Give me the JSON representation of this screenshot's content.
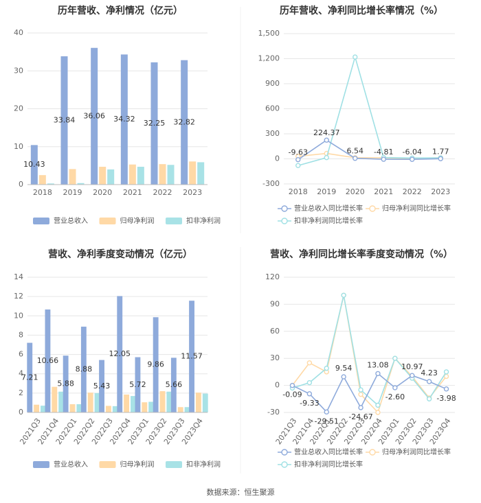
{
  "source_label": "数据来源：恒生聚源",
  "legend": {
    "revenue": "营业总收入",
    "net_profit": "归母净利润",
    "deducted_profit": "扣非净利润",
    "revenue_growth": "营业总收入同比增长率",
    "net_profit_growth": "归母净利润同比增长率",
    "deducted_profit_growth": "扣非净利润同比增长率"
  },
  "colors": {
    "revenue": "#8eaadb",
    "net_profit": "#ffd9a6",
    "deducted_profit": "#a8e2e6",
    "revenue_line": "#8eaadb",
    "net_profit_line": "#ffd9a6",
    "deducted_profit_line": "#9fe0e4"
  },
  "chart_data": [
    {
      "type": "bar",
      "title": "历年营收、净利情况（亿元）",
      "categories": [
        "2018",
        "2019",
        "2020",
        "2021",
        "2022",
        "2023"
      ],
      "ylim": [
        0,
        40
      ],
      "yticks": [
        "0",
        "10",
        "20",
        "30",
        "40"
      ],
      "series": [
        {
          "name": "营业总收入",
          "values": [
            10.43,
            33.84,
            36.06,
            34.32,
            32.25,
            32.82
          ],
          "labels": [
            "10.43",
            "33.84",
            "36.06",
            "34.32",
            "32.25",
            "32.82"
          ]
        },
        {
          "name": "归母净利润",
          "values": [
            2.5,
            4.1,
            4.7,
            5.3,
            5.4,
            6.1
          ]
        },
        {
          "name": "扣非净利润",
          "values": [
            0.3,
            0.4,
            4.0,
            4.7,
            5.2,
            5.9
          ]
        }
      ],
      "grid": true,
      "legend_position": "bottom"
    },
    {
      "type": "line",
      "title": "历年营收、净利同比增长率情况（%）",
      "categories": [
        "2018",
        "2019",
        "2020",
        "2021",
        "2022",
        "2023"
      ],
      "ylim": [
        -300,
        1500
      ],
      "yticks": [
        "-300",
        "0",
        "300",
        "600",
        "900",
        "1,200",
        "1,500"
      ],
      "series": [
        {
          "name": "营业总收入同比增长率",
          "values": [
            -9.63,
            224.37,
            6.54,
            -4.81,
            -6.04,
            1.77
          ],
          "labels": [
            "-9.63",
            "224.37",
            "6.54",
            "-4.81",
            "-6.04",
            "1.77"
          ]
        },
        {
          "name": "归母净利润同比增长率",
          "values": [
            30,
            65,
            14,
            13,
            2,
            13
          ]
        },
        {
          "name": "扣非净利润同比增长率",
          "values": [
            -80,
            15,
            1220,
            16,
            10,
            12
          ]
        }
      ],
      "grid": true,
      "legend_position": "bottom"
    },
    {
      "type": "bar",
      "title": "营收、净利季度变动情况（亿元）",
      "categories": [
        "2021Q3",
        "2021Q4",
        "2022Q1",
        "2022Q2",
        "2022Q3",
        "2022Q4",
        "2023Q1",
        "2023Q2",
        "2023Q3",
        "2023Q4"
      ],
      "ylim": [
        0,
        14
      ],
      "yticks": [
        "0",
        "2",
        "4",
        "6",
        "8",
        "10",
        "12",
        "14"
      ],
      "series": [
        {
          "name": "营业总收入",
          "values": [
            7.21,
            10.66,
            5.88,
            8.88,
            5.43,
            12.05,
            5.72,
            9.86,
            5.66,
            11.57
          ],
          "labels": [
            "7.21",
            "10.66",
            "5.88",
            "8.88",
            "5.43",
            "12.05",
            "5.72",
            "9.86",
            "5.66",
            "11.57"
          ]
        },
        {
          "name": "归母净利润",
          "values": [
            0.8,
            2.65,
            0.85,
            2.05,
            0.68,
            1.85,
            1.05,
            2.2,
            0.55,
            2.05
          ]
        },
        {
          "name": "扣非净利润",
          "values": [
            0.7,
            2.15,
            0.85,
            2.0,
            0.65,
            1.7,
            1.1,
            2.15,
            0.55,
            1.95
          ]
        }
      ],
      "grid": true,
      "legend_position": "bottom"
    },
    {
      "type": "line",
      "title": "营收、净利同比增长率季度变动情况（%）",
      "categories": [
        "2021Q3",
        "2021Q4",
        "2022Q1",
        "2022Q2",
        "2022Q3",
        "2022Q4",
        "2023Q1",
        "2023Q2",
        "2023Q3",
        "2023Q4"
      ],
      "ylim": [
        -30,
        120
      ],
      "yticks": [
        "-30",
        "0",
        "30",
        "60",
        "90",
        "120"
      ],
      "series": [
        {
          "name": "营业总收入同比增长率",
          "values": [
            -0.09,
            -9.33,
            -29.51,
            9.54,
            -24.67,
            13.08,
            -2.6,
            10.97,
            4.23,
            -3.98
          ],
          "labels": [
            "-0.09",
            "-9.33",
            "-29.51",
            "9.54",
            "-24.67",
            "13.08",
            "-2.60",
            "10.97",
            "4.23",
            "-3.98"
          ]
        },
        {
          "name": "归母净利润同比增长率",
          "values": [
            0,
            25,
            15,
            100,
            -10,
            -30,
            30,
            10,
            -14,
            10
          ]
        },
        {
          "name": "扣非净利润同比增长率",
          "values": [
            -3,
            3,
            19,
            100,
            -5,
            -22,
            30,
            8,
            -15,
            15
          ]
        }
      ],
      "grid": true,
      "legend_position": "bottom"
    }
  ]
}
